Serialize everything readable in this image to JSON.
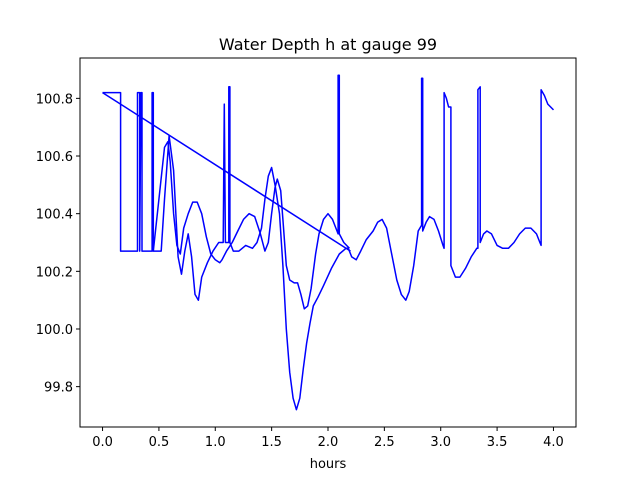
{
  "chart_data": {
    "type": "line",
    "title": "Water Depth h at gauge 99",
    "xlabel": "hours",
    "ylabel": "",
    "xlim": [
      -0.2,
      4.2
    ],
    "ylim": [
      99.66,
      100.94
    ],
    "xticks": [
      0.0,
      0.5,
      1.0,
      1.5,
      2.0,
      2.5,
      3.0,
      3.5,
      4.0
    ],
    "xtick_labels": [
      "0.0",
      "0.5",
      "1.0",
      "1.5",
      "2.0",
      "2.5",
      "3.0",
      "3.5",
      "4.0"
    ],
    "yticks": [
      99.8,
      100.0,
      100.2,
      100.4,
      100.6,
      100.8
    ],
    "ytick_labels": [
      "99.8",
      "100.0",
      "100.2",
      "100.4",
      "100.6",
      "100.8"
    ],
    "grid": false,
    "series": [
      {
        "color": "#0000ff",
        "points": [
          [
            0.0,
            100.82
          ],
          [
            0.16,
            100.82
          ],
          [
            0.16,
            100.27
          ],
          [
            0.31,
            100.27
          ],
          [
            0.31,
            100.82
          ],
          [
            0.33,
            100.82
          ],
          [
            0.33,
            100.27
          ],
          [
            0.34,
            100.82
          ],
          [
            0.35,
            100.82
          ],
          [
            0.35,
            100.27
          ],
          [
            0.44,
            100.27
          ],
          [
            0.44,
            100.82
          ],
          [
            0.45,
            100.82
          ],
          [
            0.45,
            100.27
          ],
          [
            0.52,
            100.27
          ],
          [
            0.55,
            100.45
          ],
          [
            0.59,
            100.67
          ],
          [
            0.63,
            100.55
          ],
          [
            0.67,
            100.25
          ],
          [
            0.7,
            100.19
          ],
          [
            0.73,
            100.27
          ],
          [
            0.76,
            100.33
          ],
          [
            0.79,
            100.25
          ],
          [
            0.82,
            100.12
          ],
          [
            0.85,
            100.1
          ],
          [
            0.88,
            100.18
          ],
          [
            0.93,
            100.23
          ],
          [
            0.98,
            100.27
          ],
          [
            1.03,
            100.3
          ],
          [
            1.07,
            100.3
          ],
          [
            1.08,
            100.78
          ],
          [
            1.09,
            100.3
          ],
          [
            1.12,
            100.3
          ],
          [
            1.12,
            100.84
          ],
          [
            1.13,
            100.84
          ],
          [
            1.13,
            100.3
          ],
          [
            1.16,
            100.27
          ],
          [
            1.21,
            100.27
          ],
          [
            1.27,
            100.29
          ],
          [
            1.33,
            100.28
          ],
          [
            1.37,
            100.3
          ],
          [
            1.41,
            100.35
          ],
          [
            1.44,
            100.45
          ],
          [
            1.47,
            100.53
          ],
          [
            1.5,
            100.56
          ],
          [
            1.53,
            100.5
          ],
          [
            1.57,
            100.4
          ],
          [
            1.6,
            100.22
          ],
          [
            1.63,
            100.0
          ],
          [
            1.66,
            99.85
          ],
          [
            1.69,
            99.76
          ],
          [
            1.72,
            99.72
          ],
          [
            1.75,
            99.76
          ],
          [
            1.78,
            99.86
          ],
          [
            1.81,
            99.95
          ],
          [
            1.84,
            100.02
          ],
          [
            1.87,
            100.08
          ],
          [
            1.91,
            100.11
          ],
          [
            1.96,
            100.15
          ],
          [
            2.03,
            100.21
          ],
          [
            2.1,
            100.26
          ],
          [
            2.16,
            100.28
          ],
          [
            2.18,
            100.28
          ],
          [
            2.21,
            100.25
          ],
          [
            2.25,
            100.24
          ],
          [
            2.29,
            100.27
          ],
          [
            2.34,
            100.31
          ],
          [
            2.4,
            100.34
          ],
          [
            2.44,
            100.37
          ],
          [
            2.48,
            100.38
          ],
          [
            2.52,
            100.35
          ],
          [
            2.56,
            100.27
          ],
          [
            2.61,
            100.17
          ],
          [
            2.65,
            100.12
          ],
          [
            2.69,
            100.1
          ],
          [
            2.72,
            100.13
          ],
          [
            2.76,
            100.22
          ],
          [
            2.8,
            100.34
          ],
          [
            2.83,
            100.36
          ],
          [
            2.83,
            100.87
          ],
          [
            2.84,
            100.87
          ],
          [
            2.84,
            100.34
          ],
          [
            2.87,
            100.37
          ],
          [
            2.9,
            100.39
          ],
          [
            2.94,
            100.38
          ],
          [
            2.98,
            100.34
          ],
          [
            3.02,
            100.29
          ],
          [
            3.03,
            100.28
          ],
          [
            3.03,
            100.82
          ],
          [
            3.05,
            100.8
          ],
          [
            3.07,
            100.77
          ],
          [
            3.09,
            100.77
          ],
          [
            3.09,
            100.22
          ],
          [
            3.13,
            100.18
          ],
          [
            3.17,
            100.18
          ],
          [
            3.22,
            100.21
          ],
          [
            3.27,
            100.25
          ],
          [
            3.32,
            100.28
          ],
          [
            3.33,
            100.28
          ],
          [
            3.33,
            100.83
          ],
          [
            3.35,
            100.84
          ],
          [
            3.35,
            100.3
          ],
          [
            3.38,
            100.33
          ],
          [
            3.41,
            100.34
          ],
          [
            3.45,
            100.33
          ],
          [
            3.5,
            100.29
          ],
          [
            3.55,
            100.28
          ],
          [
            3.6,
            100.28
          ],
          [
            3.65,
            100.3
          ],
          [
            3.7,
            100.33
          ],
          [
            3.75,
            100.35
          ],
          [
            3.8,
            100.35
          ],
          [
            3.85,
            100.33
          ],
          [
            3.88,
            100.3
          ],
          [
            3.89,
            100.29
          ],
          [
            3.89,
            100.83
          ],
          [
            3.92,
            100.81
          ],
          [
            3.95,
            100.78
          ],
          [
            4.0,
            100.76
          ]
        ]
      },
      {
        "color": "#0000ff",
        "points": [
          [
            0.45,
            100.27
          ],
          [
            0.5,
            100.45
          ],
          [
            0.55,
            100.63
          ],
          [
            0.58,
            100.65
          ],
          [
            0.6,
            100.58
          ],
          [
            0.63,
            100.4
          ],
          [
            0.66,
            100.29
          ],
          [
            0.69,
            100.26
          ],
          [
            0.72,
            100.35
          ],
          [
            0.76,
            100.4
          ],
          [
            0.8,
            100.44
          ],
          [
            0.84,
            100.44
          ],
          [
            0.88,
            100.4
          ],
          [
            0.92,
            100.32
          ],
          [
            0.96,
            100.26
          ],
          [
            1.0,
            100.24
          ],
          [
            1.04,
            100.23
          ],
          [
            1.06,
            100.24
          ],
          [
            1.1,
            100.27
          ],
          [
            1.15,
            100.3
          ],
          [
            1.2,
            100.34
          ],
          [
            1.25,
            100.38
          ],
          [
            1.3,
            100.4
          ],
          [
            1.35,
            100.39
          ],
          [
            1.4,
            100.33
          ],
          [
            1.44,
            100.27
          ],
          [
            1.47,
            100.3
          ],
          [
            1.5,
            100.4
          ],
          [
            1.53,
            100.49
          ],
          [
            1.55,
            100.52
          ],
          [
            1.58,
            100.48
          ],
          [
            1.6,
            100.38
          ],
          [
            1.63,
            100.22
          ],
          [
            1.66,
            100.17
          ],
          [
            1.7,
            100.16
          ],
          [
            1.73,
            100.16
          ],
          [
            1.76,
            100.12
          ],
          [
            1.79,
            100.07
          ],
          [
            1.82,
            100.08
          ],
          [
            1.85,
            100.14
          ],
          [
            1.89,
            100.26
          ],
          [
            1.92,
            100.33
          ],
          [
            1.96,
            100.38
          ],
          [
            2.0,
            100.4
          ],
          [
            2.04,
            100.38
          ],
          [
            2.08,
            100.34
          ],
          [
            2.09,
            100.33
          ],
          [
            2.09,
            100.88
          ],
          [
            2.1,
            100.88
          ],
          [
            2.1,
            100.33
          ],
          [
            2.14,
            100.3
          ],
          [
            2.19,
            100.28
          ]
        ]
      },
      {
        "color": "#0000ff",
        "points": [
          [
            0.0,
            100.82
          ],
          [
            2.2,
            100.27
          ]
        ]
      }
    ]
  }
}
